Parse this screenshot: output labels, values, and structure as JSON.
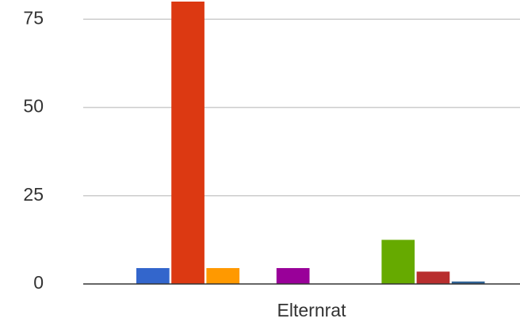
{
  "chart_data": {
    "type": "bar",
    "categories": [
      "Elternrat"
    ],
    "series": [
      {
        "color": "#3366cc",
        "values": [
          4.5
        ]
      },
      {
        "color": "#dc3912",
        "values": [
          80
        ]
      },
      {
        "color": "#ff9900",
        "values": [
          4.5
        ]
      },
      {
        "values": [
          0
        ]
      },
      {
        "color": "#990099",
        "values": [
          4.5
        ]
      },
      {
        "values": [
          0
        ]
      },
      {
        "values": [
          0
        ]
      },
      {
        "color": "#66aa00",
        "values": [
          12.5
        ]
      },
      {
        "color": "#b82e2e",
        "values": [
          3.5
        ]
      },
      {
        "color": "#316395",
        "values": [
          0.7
        ]
      }
    ],
    "ylim": [
      0,
      80
    ],
    "yticks": [
      0,
      25,
      50,
      75
    ],
    "grid": true
  }
}
